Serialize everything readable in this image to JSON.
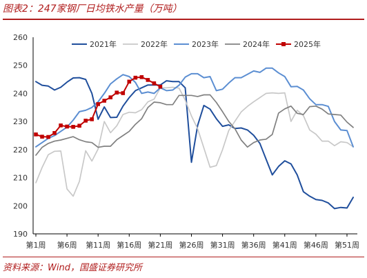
{
  "title": "图表2：247家钢厂日均铁水产量（万吨）",
  "source": "资料来源：Wind，国盛证券研究所",
  "chart_data": {
    "type": "line",
    "ylim": [
      190,
      260
    ],
    "yticks": [
      190,
      200,
      210,
      220,
      230,
      240,
      250,
      260
    ],
    "x": [
      1,
      2,
      3,
      4,
      5,
      6,
      7,
      8,
      9,
      10,
      11,
      12,
      13,
      14,
      15,
      16,
      17,
      18,
      19,
      20,
      21,
      22,
      23,
      24,
      25,
      26,
      27,
      28,
      29,
      30,
      31,
      32,
      33,
      34,
      35,
      36,
      37,
      38,
      39,
      40,
      41,
      42,
      43,
      44,
      45,
      46,
      47,
      48,
      49,
      50,
      51,
      52
    ],
    "xtick_values": [
      1,
      6,
      11,
      16,
      21,
      26,
      31,
      36,
      41,
      46,
      51
    ],
    "xtick_labels": [
      "第1周",
      "第6周",
      "第11周",
      "第16周",
      "第21周",
      "第26周",
      "第31周",
      "第36周",
      "第41周",
      "第46周",
      "第51周"
    ],
    "grid": false,
    "legend_position": "top",
    "series": [
      {
        "name": "2021年",
        "color": "#1f4e9c",
        "width": 2,
        "marker": false,
        "values": [
          244.2,
          242.9,
          242.6,
          241.2,
          242.2,
          244.0,
          245.5,
          245.6,
          245.0,
          240.0,
          230.8,
          235.2,
          231.4,
          231.5,
          235.5,
          238.5,
          241.0,
          242.0,
          243.0,
          243.0,
          243.0,
          244.5,
          244.2,
          244.2,
          242.0,
          215.5,
          228.6,
          235.7,
          234.4,
          231.0,
          228.3,
          228.8,
          227.5,
          227.7,
          227.0,
          225.1,
          222.2,
          216.6,
          211.0,
          214.0,
          216.0,
          214.9,
          211.0,
          205.0,
          203.4,
          202.2,
          201.9,
          201.0,
          199.0,
          199.4,
          199.2,
          203.0
        ]
      },
      {
        "name": "2022年",
        "color": "#c8c8c8",
        "width": 1.7,
        "marker": false,
        "values": [
          208.2,
          213.6,
          218.2,
          219.4,
          219.5,
          206.0,
          203.4,
          208.7,
          219.6,
          215.9,
          220.2,
          230.0,
          226.0,
          228.5,
          232.5,
          233.3,
          233.1,
          234.2,
          237.0,
          238.0,
          242.0,
          242.0,
          242.2,
          241.9,
          237.6,
          232.0,
          227.4,
          220.6,
          213.7,
          214.3,
          220.0,
          226.8,
          230.1,
          233.4,
          235.4,
          237.0,
          238.5,
          240.0,
          240.2,
          240.0,
          240.2,
          230.0,
          234.0,
          232.1,
          227.0,
          225.5,
          223.0,
          223.0,
          221.4,
          222.8,
          222.5,
          221.0
        ]
      },
      {
        "name": "2023年",
        "color": "#5b8ed2",
        "width": 2,
        "marker": false,
        "values": [
          221.0,
          222.5,
          224.0,
          225.0,
          226.5,
          228.0,
          230.5,
          233.5,
          234.0,
          235.0,
          237.0,
          240.0,
          243.4,
          245.2,
          246.7,
          246.0,
          243.9,
          240.0,
          240.5,
          240.0,
          242.0,
          241.0,
          241.2,
          242.9,
          245.8,
          247.0,
          247.0,
          245.6,
          246.0,
          241.0,
          241.5,
          243.7,
          245.6,
          245.6,
          246.8,
          248.0,
          247.5,
          249.0,
          249.0,
          247.3,
          246.0,
          242.4,
          242.5,
          241.2,
          238.1,
          236.0,
          236.0,
          235.4,
          230.0,
          227.0,
          226.8,
          221.0
        ]
      },
      {
        "name": "2024年",
        "color": "#808080",
        "width": 1.7,
        "marker": false,
        "values": [
          218.0,
          220.8,
          222.2,
          223.0,
          223.4,
          224.0,
          224.6,
          223.5,
          222.8,
          222.5,
          220.8,
          221.2,
          221.2,
          223.5,
          225.0,
          226.5,
          229.0,
          231.0,
          235.0,
          236.9,
          236.7,
          236.0,
          236.0,
          239.3,
          239.3,
          239.3,
          238.9,
          239.5,
          239.5,
          236.8,
          233.5,
          230.0,
          227.4,
          223.4,
          220.9,
          222.5,
          223.4,
          223.7,
          225.4,
          233.0,
          234.5,
          235.5,
          232.9,
          232.5,
          235.3,
          235.5,
          234.4,
          232.7,
          232.5,
          232.3,
          229.8,
          227.9
        ]
      },
      {
        "name": "2025年",
        "color": "#c00000",
        "width": 2,
        "marker": true,
        "values": [
          225.4,
          224.6,
          224.5,
          225.9,
          228.6,
          228.2,
          228.1,
          228.5,
          230.3,
          230.8,
          236.2,
          237.4,
          238.6,
          240.3,
          240.1,
          244.2,
          245.6,
          245.8,
          244.8,
          243.6,
          242.4,
          null,
          null,
          null,
          null,
          null,
          null,
          null,
          null,
          null,
          null,
          null,
          null,
          null,
          null,
          null,
          null,
          null,
          null,
          null,
          null,
          null,
          null,
          null,
          null,
          null,
          null,
          null,
          null,
          null,
          null,
          null
        ]
      }
    ]
  }
}
